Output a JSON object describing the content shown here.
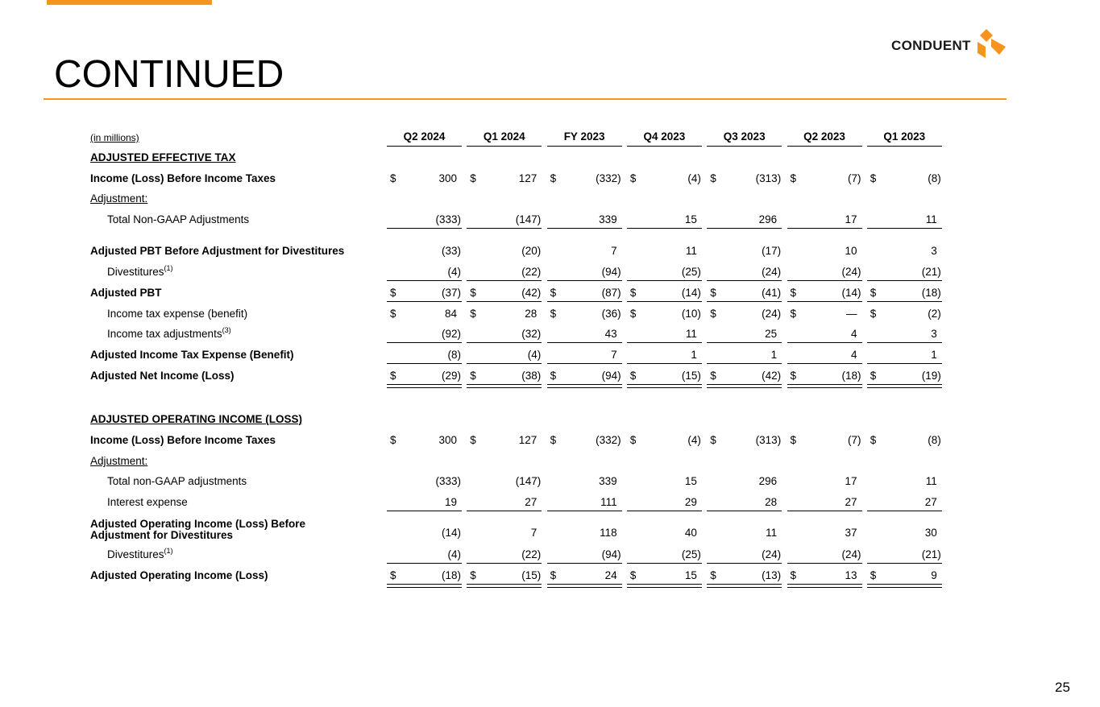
{
  "header": {
    "title": "CONTINUED",
    "logo": "CONDUENT"
  },
  "page_number": "25",
  "table": {
    "unit": "(in millions)",
    "columns": [
      "Q2 2024",
      "Q1 2024",
      "FY 2023",
      "Q4 2023",
      "Q3 2023",
      "Q2 2023",
      "Q1 2023"
    ],
    "sections": [
      {
        "title": "ADJUSTED EFFECTIVE TAX",
        "rows": [
          {
            "label": "Income (Loss) Before Income Taxes",
            "bold": true,
            "currency": "$",
            "values": [
              "300",
              "127",
              "(332)",
              "(4)",
              "(313)",
              "(7)",
              "(8)"
            ]
          },
          {
            "label": "Adjustment:",
            "underline_label": true
          },
          {
            "label": "Total Non-GAAP Adjustments",
            "indent": true,
            "rule": "single",
            "values": [
              "(333)",
              "(147)",
              "339",
              "15",
              "296",
              "17",
              "11"
            ]
          },
          {
            "label": "Adjusted PBT Before Adjustment for Divestitures",
            "bold": true,
            "values": [
              "(33)",
              "(20)",
              "7",
              "11",
              "(17)",
              "10",
              "3"
            ]
          },
          {
            "label": "Divestitures",
            "note": "(1)",
            "indent": true,
            "rule": "single",
            "values": [
              "(4)",
              "(22)",
              "(94)",
              "(25)",
              "(24)",
              "(24)",
              "(21)"
            ]
          },
          {
            "label": "Adjusted PBT",
            "bold": true,
            "currency": "$",
            "rule": "single",
            "values": [
              "(37)",
              "(42)",
              "(87)",
              "(14)",
              "(41)",
              "(14)",
              "(18)"
            ]
          },
          {
            "label": "Income tax expense (benefit)",
            "indent": true,
            "currency": "$",
            "values": [
              "84",
              "28",
              "(36)",
              "(10)",
              "(24)",
              "—",
              "(2)"
            ]
          },
          {
            "label": "Income tax adjustments",
            "note": "(3)",
            "indent": true,
            "rule": "single",
            "values": [
              "(92)",
              "(32)",
              "43",
              "11",
              "25",
              "4",
              "3"
            ]
          },
          {
            "label": "Adjusted Income Tax Expense (Benefit)",
            "bold": true,
            "rule": "single",
            "values": [
              "(8)",
              "(4)",
              "7",
              "1",
              "1",
              "4",
              "1"
            ]
          },
          {
            "label": "Adjusted Net Income (Loss)",
            "bold": true,
            "currency": "$",
            "rule": "double",
            "values": [
              "(29)",
              "(38)",
              "(94)",
              "(15)",
              "(42)",
              "(18)",
              "(19)"
            ]
          }
        ]
      },
      {
        "title": "ADJUSTED OPERATING INCOME (LOSS)",
        "rows": [
          {
            "label": "Income (Loss) Before Income Taxes",
            "bold": true,
            "currency": "$",
            "values": [
              "300",
              "127",
              "(332)",
              "(4)",
              "(313)",
              "(7)",
              "(8)"
            ]
          },
          {
            "label": "Adjustment:",
            "underline_label": true
          },
          {
            "label": "Total non-GAAP adjustments",
            "indent": true,
            "values": [
              "(333)",
              "(147)",
              "339",
              "15",
              "296",
              "17",
              "11"
            ]
          },
          {
            "label": "Interest expense",
            "indent": true,
            "rule": "single",
            "values": [
              "19",
              "27",
              "111",
              "29",
              "28",
              "27",
              "27"
            ]
          },
          {
            "label": "Adjusted Operating Income (Loss) Before\nAdjustment for Divestitures",
            "bold": true,
            "values": [
              "(14)",
              "7",
              "118",
              "40",
              "11",
              "37",
              "30"
            ]
          },
          {
            "label": "Divestitures",
            "note": "(1)",
            "indent": true,
            "rule": "single",
            "values": [
              "(4)",
              "(22)",
              "(94)",
              "(25)",
              "(24)",
              "(24)",
              "(21)"
            ]
          },
          {
            "label": "Adjusted Operating Income (Loss)",
            "bold": true,
            "currency": "$",
            "rule": "double",
            "values": [
              "(18)",
              "(15)",
              "24",
              "15",
              "(13)",
              "13",
              "9"
            ]
          }
        ]
      }
    ]
  }
}
